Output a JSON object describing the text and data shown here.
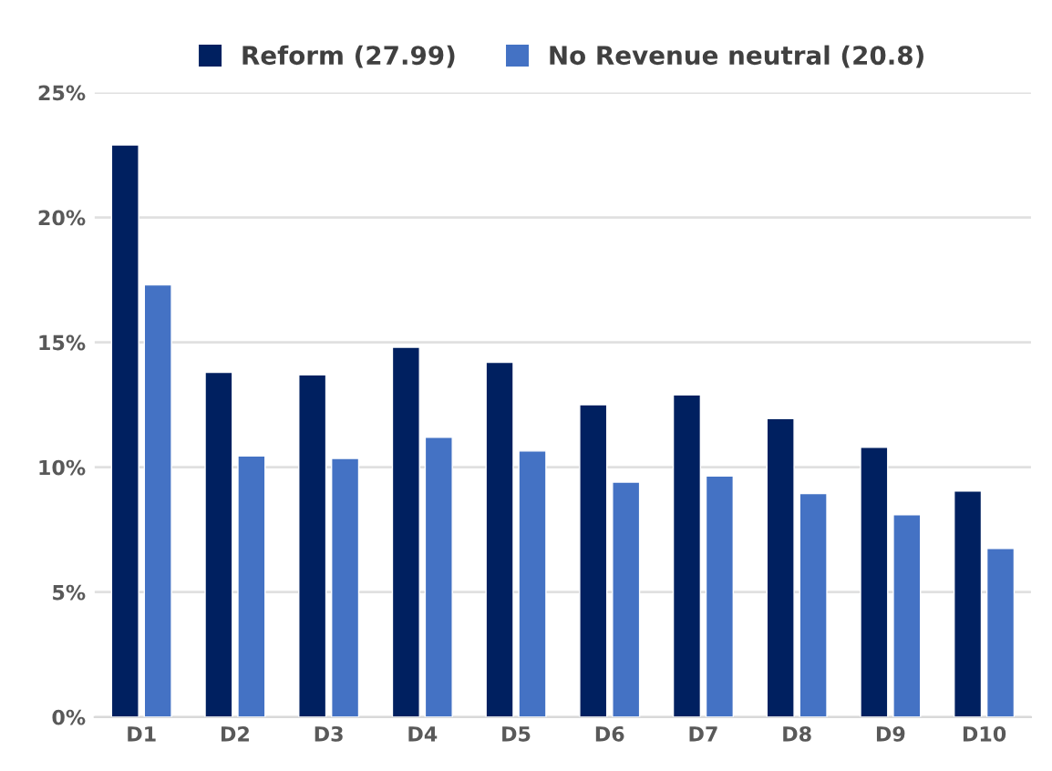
{
  "chart_data": {
    "type": "bar",
    "categories": [
      "D1",
      "D2",
      "D3",
      "D4",
      "D5",
      "D6",
      "D7",
      "D8",
      "D9",
      "D10"
    ],
    "series": [
      {
        "name": "Reform (27.99)",
        "color": "#002060",
        "values": [
          22.9,
          13.8,
          13.7,
          14.8,
          14.2,
          12.5,
          12.9,
          11.95,
          10.8,
          9.05
        ]
      },
      {
        "name": "No Revenue neutral (20.8)",
        "color": "#4472c4",
        "values": [
          17.3,
          10.45,
          10.35,
          11.2,
          10.65,
          9.4,
          9.65,
          8.95,
          8.1,
          6.75
        ]
      }
    ],
    "ylim": [
      0,
      25
    ],
    "yticks": [
      {
        "value": 0,
        "label": "0%"
      },
      {
        "value": 5,
        "label": "5%"
      },
      {
        "value": 10,
        "label": "10%"
      },
      {
        "value": 15,
        "label": "15%"
      },
      {
        "value": 20,
        "label": "20%"
      },
      {
        "value": 25,
        "label": "25%"
      }
    ],
    "grid": "y",
    "legend": "top"
  }
}
